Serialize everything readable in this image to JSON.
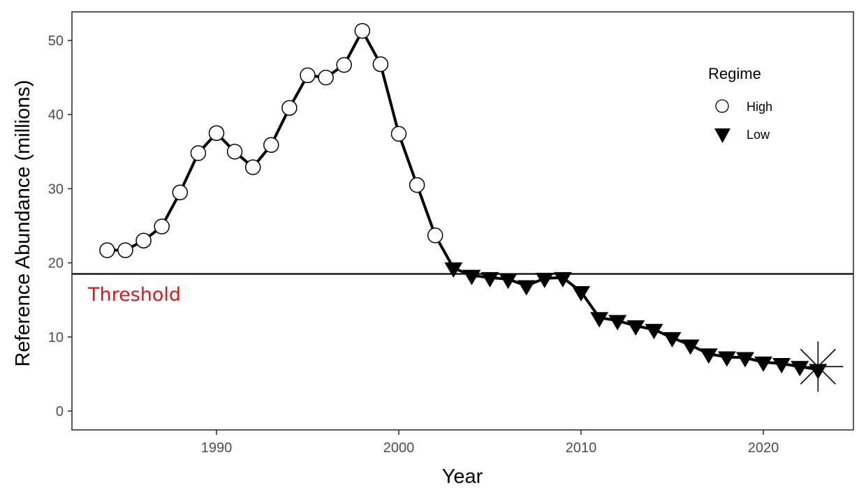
{
  "chart_data": {
    "type": "line",
    "title": "",
    "xlabel": "Year",
    "ylabel": "Reference Abundance (millions)",
    "xlim": [
      1982.2,
      2025.1
    ],
    "ylim": [
      -2.5,
      53.8
    ],
    "x_ticks": [
      1990,
      2000,
      2010,
      2020
    ],
    "y_ticks": [
      0,
      10,
      20,
      30,
      40,
      50
    ],
    "grid": false,
    "legend": {
      "title": "Regime",
      "position": "top-right inside",
      "entries": [
        {
          "label": "High",
          "marker": "open-circle"
        },
        {
          "label": "Low",
          "marker": "filled-down-triangle"
        }
      ]
    },
    "series": [
      {
        "name": "Reference Abundance",
        "x": [
          1984,
          1985,
          1986,
          1987,
          1988,
          1989,
          1990,
          1991,
          1992,
          1993,
          1994,
          1995,
          1996,
          1997,
          1998,
          1999,
          2000,
          2001,
          2002,
          2003,
          2004,
          2005,
          2006,
          2007,
          2008,
          2009,
          2010,
          2011,
          2012,
          2013,
          2014,
          2015,
          2016,
          2017,
          2018,
          2019,
          2020,
          2021,
          2022,
          2023
        ],
        "values": [
          21.7,
          21.7,
          23.0,
          24.9,
          29.5,
          34.8,
          37.5,
          35.0,
          32.9,
          35.9,
          40.9,
          45.3,
          45.0,
          46.7,
          51.3,
          46.8,
          37.4,
          30.5,
          23.7,
          19.3,
          18.3,
          18.0,
          17.8,
          16.9,
          17.9,
          18.0,
          16.1,
          12.6,
          12.2,
          11.5,
          11.0,
          9.9,
          8.9,
          7.7,
          7.3,
          7.2,
          6.6,
          6.4,
          6.0,
          5.6
        ],
        "regime": [
          "High",
          "High",
          "High",
          "High",
          "High",
          "High",
          "High",
          "High",
          "High",
          "High",
          "High",
          "High",
          "High",
          "High",
          "High",
          "High",
          "High",
          "High",
          "High",
          "Low",
          "Low",
          "Low",
          "Low",
          "Low",
          "Low",
          "Low",
          "Low",
          "Low",
          "Low",
          "Low",
          "Low",
          "Low",
          "Low",
          "Low",
          "Low",
          "Low",
          "Low",
          "Low",
          "Low",
          "Low"
        ]
      }
    ],
    "reference_lines": [
      {
        "type": "horizontal",
        "y": 18.5,
        "label": "Threshold",
        "label_color": "#d7191c"
      }
    ],
    "annotations": [
      {
        "type": "star-marker",
        "x": 2023,
        "y": 6.0,
        "note": "asterisk highlight on final year"
      }
    ]
  },
  "labels": {
    "xlabel": "Year",
    "ylabel": "Reference Abundance (millions)",
    "threshold": "Threshold",
    "legend_title": "Regime",
    "legend_high": "High",
    "legend_low": "Low"
  },
  "colors": {
    "threshold_label": "#d7191c",
    "line": "#000000",
    "panel_border": "#333333",
    "tick_text": "#4d4d4d"
  }
}
